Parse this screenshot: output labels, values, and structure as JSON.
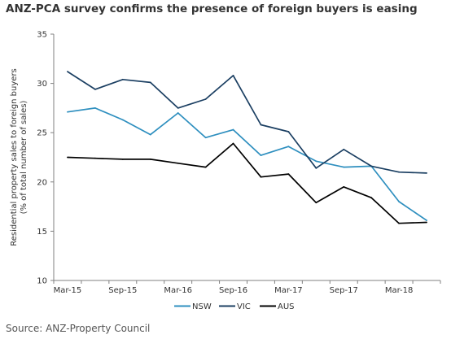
{
  "chart_data": {
    "type": "line",
    "title": "ANZ-PCA survey confirms the presence of foreign buyers is easing",
    "ylabel_lines": [
      "Residential property sales to foreign buyers",
      "(% of total number of sales)"
    ],
    "xlabel": "",
    "ylim": [
      10,
      35
    ],
    "yticks": [
      10,
      15,
      20,
      25,
      30,
      35
    ],
    "x": [
      "Mar-15",
      "Jun-15",
      "Sep-15",
      "Dec-15",
      "Mar-16",
      "Jun-16",
      "Sep-16",
      "Dec-16",
      "Mar-17",
      "Jun-17",
      "Sep-17",
      "Dec-17",
      "Mar-18",
      "Jun-18"
    ],
    "xtick_labels": [
      "Mar-15",
      "Sep-15",
      "Mar-16",
      "Sep-16",
      "Mar-17",
      "Sep-17",
      "Mar-18"
    ],
    "series": [
      {
        "name": "NSW",
        "color": "#2e8fbf",
        "values": [
          27.1,
          27.5,
          26.3,
          24.8,
          27.0,
          24.5,
          25.3,
          22.7,
          23.6,
          22.1,
          21.5,
          21.6,
          18.0,
          16.1
        ]
      },
      {
        "name": "VIC",
        "color": "#1b3f62",
        "values": [
          31.2,
          29.4,
          30.4,
          30.1,
          27.5,
          28.4,
          30.8,
          25.8,
          25.1,
          21.4,
          23.3,
          21.6,
          21.0,
          20.9
        ]
      },
      {
        "name": "AUS",
        "color": "#000000",
        "values": [
          22.5,
          22.4,
          22.3,
          22.3,
          21.9,
          21.5,
          23.9,
          20.5,
          20.8,
          17.9,
          19.5,
          18.4,
          15.8,
          15.9
        ]
      }
    ],
    "legend_position": "bottom",
    "grid": false
  },
  "source_text": "Source: ANZ-Property Council"
}
